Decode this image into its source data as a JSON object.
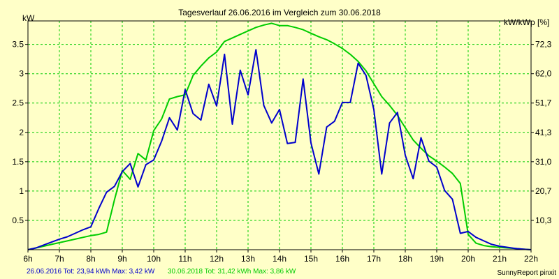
{
  "chart_data": {
    "type": "line",
    "title": "Tagesverlauf 26.06.2016 im Vergleich zum 30.06.2018",
    "ylabel_left": "kW",
    "ylabel_right": "kW/kWp [%]",
    "ylim": [
      0,
      3.9
    ],
    "xlim": [
      6,
      22
    ],
    "x_ticks": [
      "6h",
      "7h",
      "8h",
      "9h",
      "10h",
      "11h",
      "12h",
      "13h",
      "14h",
      "15h",
      "16h",
      "17h",
      "18h",
      "19h",
      "20h",
      "21h",
      "22h"
    ],
    "y_ticks_left": [
      "0.5",
      "1",
      "1.5",
      "2",
      "2.5",
      "3",
      "3.5"
    ],
    "y_ticks_right": [
      "10,3",
      "20,7",
      "31,0",
      "41,3",
      "51,7",
      "62,0",
      "72,3"
    ],
    "grid": true,
    "series": [
      {
        "name": "26.06.2016",
        "color": "#0000cc",
        "legend": "26.06.2016 Tot: 23,94 kWh Max: 3,42 kW",
        "points": [
          [
            6.0,
            0.0
          ],
          [
            6.25,
            0.03
          ],
          [
            6.5,
            0.08
          ],
          [
            6.75,
            0.13
          ],
          [
            7.0,
            0.18
          ],
          [
            7.25,
            0.22
          ],
          [
            7.5,
            0.28
          ],
          [
            7.75,
            0.34
          ],
          [
            8.0,
            0.39
          ],
          [
            8.25,
            0.7
          ],
          [
            8.5,
            0.98
          ],
          [
            8.75,
            1.08
          ],
          [
            9.0,
            1.33
          ],
          [
            9.25,
            1.47
          ],
          [
            9.5,
            1.07
          ],
          [
            9.75,
            1.45
          ],
          [
            10.0,
            1.53
          ],
          [
            10.25,
            1.85
          ],
          [
            10.5,
            2.25
          ],
          [
            10.75,
            2.04
          ],
          [
            11.0,
            2.73
          ],
          [
            11.25,
            2.32
          ],
          [
            11.5,
            2.21
          ],
          [
            11.75,
            2.82
          ],
          [
            12.0,
            2.45
          ],
          [
            12.25,
            3.33
          ],
          [
            12.5,
            2.14
          ],
          [
            12.75,
            3.06
          ],
          [
            13.0,
            2.64
          ],
          [
            13.25,
            3.41
          ],
          [
            13.5,
            2.46
          ],
          [
            13.75,
            2.16
          ],
          [
            14.0,
            2.39
          ],
          [
            14.25,
            1.81
          ],
          [
            14.5,
            1.83
          ],
          [
            14.75,
            2.91
          ],
          [
            15.0,
            1.82
          ],
          [
            15.25,
            1.29
          ],
          [
            15.5,
            2.09
          ],
          [
            15.75,
            2.19
          ],
          [
            16.0,
            2.51
          ],
          [
            16.25,
            2.51
          ],
          [
            16.5,
            3.18
          ],
          [
            16.75,
            2.97
          ],
          [
            17.0,
            2.39
          ],
          [
            17.25,
            1.29
          ],
          [
            17.5,
            2.16
          ],
          [
            17.75,
            2.34
          ],
          [
            18.0,
            1.61
          ],
          [
            18.25,
            1.21
          ],
          [
            18.5,
            1.91
          ],
          [
            18.75,
            1.51
          ],
          [
            19.0,
            1.41
          ],
          [
            19.25,
            1.01
          ],
          [
            19.5,
            0.86
          ],
          [
            19.75,
            0.28
          ],
          [
            20.0,
            0.31
          ],
          [
            20.25,
            0.21
          ],
          [
            20.5,
            0.15
          ],
          [
            20.75,
            0.09
          ],
          [
            21.0,
            0.06
          ],
          [
            21.25,
            0.04
          ],
          [
            21.5,
            0.02
          ],
          [
            21.75,
            0.01
          ],
          [
            22.0,
            0.0
          ]
        ]
      },
      {
        "name": "30.06.2018",
        "color": "#00cc00",
        "legend": "30.06.2018 Tot: 31,42 kWh Max: 3,86 kW",
        "points": [
          [
            6.0,
            0.0
          ],
          [
            6.25,
            0.03
          ],
          [
            6.5,
            0.06
          ],
          [
            6.75,
            0.09
          ],
          [
            7.0,
            0.12
          ],
          [
            7.25,
            0.15
          ],
          [
            7.5,
            0.18
          ],
          [
            7.75,
            0.21
          ],
          [
            8.0,
            0.24
          ],
          [
            8.25,
            0.26
          ],
          [
            8.5,
            0.3
          ],
          [
            8.75,
            0.85
          ],
          [
            9.0,
            1.35
          ],
          [
            9.25,
            1.2
          ],
          [
            9.5,
            1.64
          ],
          [
            9.75,
            1.53
          ],
          [
            10.0,
            2.03
          ],
          [
            10.25,
            2.23
          ],
          [
            10.5,
            2.57
          ],
          [
            10.75,
            2.61
          ],
          [
            11.0,
            2.64
          ],
          [
            11.25,
            2.97
          ],
          [
            11.5,
            3.13
          ],
          [
            11.75,
            3.27
          ],
          [
            12.0,
            3.37
          ],
          [
            12.25,
            3.55
          ],
          [
            12.5,
            3.61
          ],
          [
            12.75,
            3.67
          ],
          [
            13.0,
            3.73
          ],
          [
            13.25,
            3.79
          ],
          [
            13.5,
            3.83
          ],
          [
            13.75,
            3.86
          ],
          [
            14.0,
            3.82
          ],
          [
            14.25,
            3.82
          ],
          [
            14.5,
            3.79
          ],
          [
            14.75,
            3.75
          ],
          [
            15.0,
            3.69
          ],
          [
            15.25,
            3.63
          ],
          [
            15.5,
            3.58
          ],
          [
            15.75,
            3.51
          ],
          [
            16.0,
            3.43
          ],
          [
            16.25,
            3.33
          ],
          [
            16.5,
            3.21
          ],
          [
            16.75,
            3.05
          ],
          [
            17.0,
            2.83
          ],
          [
            17.25,
            2.61
          ],
          [
            17.5,
            2.46
          ],
          [
            17.75,
            2.29
          ],
          [
            18.0,
            2.08
          ],
          [
            18.25,
            1.87
          ],
          [
            18.5,
            1.73
          ],
          [
            18.75,
            1.6
          ],
          [
            19.0,
            1.51
          ],
          [
            19.25,
            1.41
          ],
          [
            19.5,
            1.3
          ],
          [
            19.75,
            1.13
          ],
          [
            20.0,
            0.26
          ],
          [
            20.25,
            0.11
          ],
          [
            20.5,
            0.07
          ],
          [
            20.75,
            0.05
          ],
          [
            21.0,
            0.04
          ],
          [
            21.25,
            0.03
          ],
          [
            21.5,
            0.02
          ],
          [
            21.75,
            0.01
          ],
          [
            22.0,
            0.0
          ]
        ]
      }
    ]
  },
  "footer": {
    "credit": "SunnyReport pinxit"
  }
}
